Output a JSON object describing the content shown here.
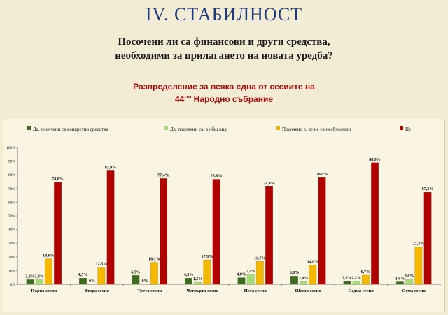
{
  "header": {
    "title": "IV. СТАБИЛНОСТ",
    "question_line1": "Посочени ли са финансови и други средства,",
    "question_line2": "необходими за прилагането на новата уредба?",
    "subtitle_line1": "Разпределение  за всяка една от сесиите на",
    "subtitle_line2_pre": "44",
    "subtitle_line2_sup": "-то",
    "subtitle_line2_post": " Народно събрание"
  },
  "chart_data": {
    "type": "bar",
    "categories": [
      "Първа  сесия",
      "Втора сесия",
      "Трета сесия",
      "Четвърта сесия",
      "Пета сесия",
      "Шеста сесия",
      "Седма сесия",
      "Осма сесия"
    ],
    "series": [
      {
        "name": "Да, посочени са конкретни средства",
        "color": "#3d6b1f",
        "values": [
          3.4,
          4.5,
          6.5,
          4.5,
          4.8,
          6.0,
          2.2,
          1.8
        ]
      },
      {
        "name": "Да, посочени са, в общ вид",
        "color": "#a6db7a",
        "values": [
          3.4,
          0,
          0,
          1.5,
          7.2,
          2.0,
          2.2,
          3.6
        ]
      },
      {
        "name": "Посочено е, че не са необходими",
        "color": "#f5b800",
        "values": [
          18.6,
          12.5,
          16.1,
          17.9,
          16.7,
          14.0,
          6.7,
          27.3
        ]
      },
      {
        "name": "Не",
        "color": "#b00000",
        "values": [
          74.6,
          83.0,
          77.4,
          76.8,
          71.4,
          78.0,
          88.9,
          67.3
        ]
      }
    ],
    "labels": [
      [
        "3,4%",
        "4,5%",
        "6,5%",
        "4,5%",
        "4,8%",
        "6,0%",
        "2,2%",
        "1,8%"
      ],
      [
        "3,4%",
        "0%",
        "0%",
        "1,5%",
        "7,2%",
        "2,0%",
        "2,2%",
        "3,6%"
      ],
      [
        "18,6%",
        "12,5%",
        "16,1%",
        "17,9%",
        "16,7%",
        "14,0%",
        "6,7%",
        "27,3%"
      ],
      [
        "74,6%",
        "83,0%",
        "77,4%",
        "76,8%",
        "71,4%",
        "78,0%",
        "88,9%",
        "67,3%"
      ]
    ],
    "yticks": [
      "0%",
      "10%",
      "20%",
      "30%",
      "40%",
      "50%",
      "60%",
      "70%",
      "80%",
      "90%",
      "100%"
    ],
    "ylim": [
      0,
      100
    ],
    "legend_position": "top",
    "grid": false
  }
}
